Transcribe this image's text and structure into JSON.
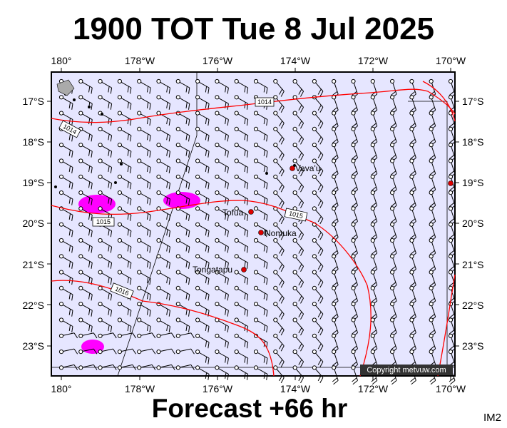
{
  "title": "1900 TOT Tue 8 Jul 2025",
  "footer": "Forecast +66 hr",
  "code": "IM2",
  "copyright": "Copyright metvuw.com",
  "colors": {
    "ocean": "#e6e6ff",
    "isobar": "#ff0000",
    "rain": "#ff00ff",
    "barb": "#000000",
    "place_marker": "#dd0000"
  },
  "map": {
    "lon_range": [
      180.25,
      190.7
    ],
    "lat_range": [
      -16.5,
      -23.7
    ],
    "lon_labels": [
      "180°",
      "178°W",
      "176°W",
      "174°W",
      "172°W",
      "170°W"
    ],
    "lat_labels": [
      "17°S",
      "18°S",
      "19°S",
      "20°S",
      "21°S",
      "22°S",
      "23°S"
    ],
    "places": [
      {
        "name": "Vava'u",
        "lon": 185.95,
        "lat": -18.65
      },
      {
        "name": "Tofua",
        "lon": 184.8,
        "lat": -19.75
      },
      {
        "name": "Nomuka",
        "lon": 185.2,
        "lat": -20.25
      },
      {
        "name": "Tongatapu",
        "lon": 184.8,
        "lat": -21.15
      }
    ],
    "isobar_labels": [
      "1014",
      "1014",
      "1015",
      "1015",
      "1016"
    ]
  }
}
